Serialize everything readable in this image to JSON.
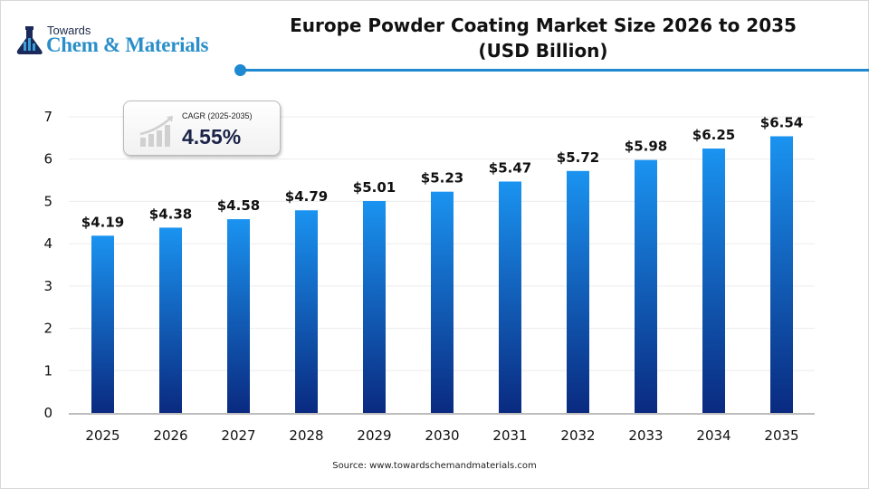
{
  "logo": {
    "line1": "Towards",
    "line2": "Chem & Materials"
  },
  "cagr": {
    "label": "CAGR (2025-2035)",
    "value": "4.55%",
    "icon": "growth-chart-icon"
  },
  "source": "Source: www.towardschemandmaterials.com",
  "colors": {
    "bar_top": "#1a93f0",
    "bar_bottom": "#0a2a80",
    "accent": "#1e88d0",
    "grid": "#ececec",
    "axis": "#bdbdbd"
  },
  "chart_data": {
    "type": "bar",
    "title": "Europe Powder Coating Market Size 2026 to 2035",
    "subtitle": "(USD Billion)",
    "categories": [
      "2025",
      "2026",
      "2027",
      "2028",
      "2029",
      "2030",
      "2031",
      "2032",
      "2033",
      "2034",
      "2035"
    ],
    "values": [
      4.19,
      4.38,
      4.58,
      4.79,
      5.01,
      5.23,
      5.47,
      5.72,
      5.98,
      6.25,
      6.54
    ],
    "data_labels": [
      "$4.19",
      "$4.38",
      "$4.58",
      "$4.79",
      "$5.01",
      "$5.23",
      "$5.47",
      "$5.72",
      "$5.98",
      "$6.25",
      "$6.54"
    ],
    "yticks": [
      0,
      1,
      2,
      3,
      4,
      5,
      6,
      7
    ],
    "ylim": [
      0,
      7
    ],
    "xlabel": "",
    "ylabel": "",
    "grid": true,
    "legend": "none"
  }
}
